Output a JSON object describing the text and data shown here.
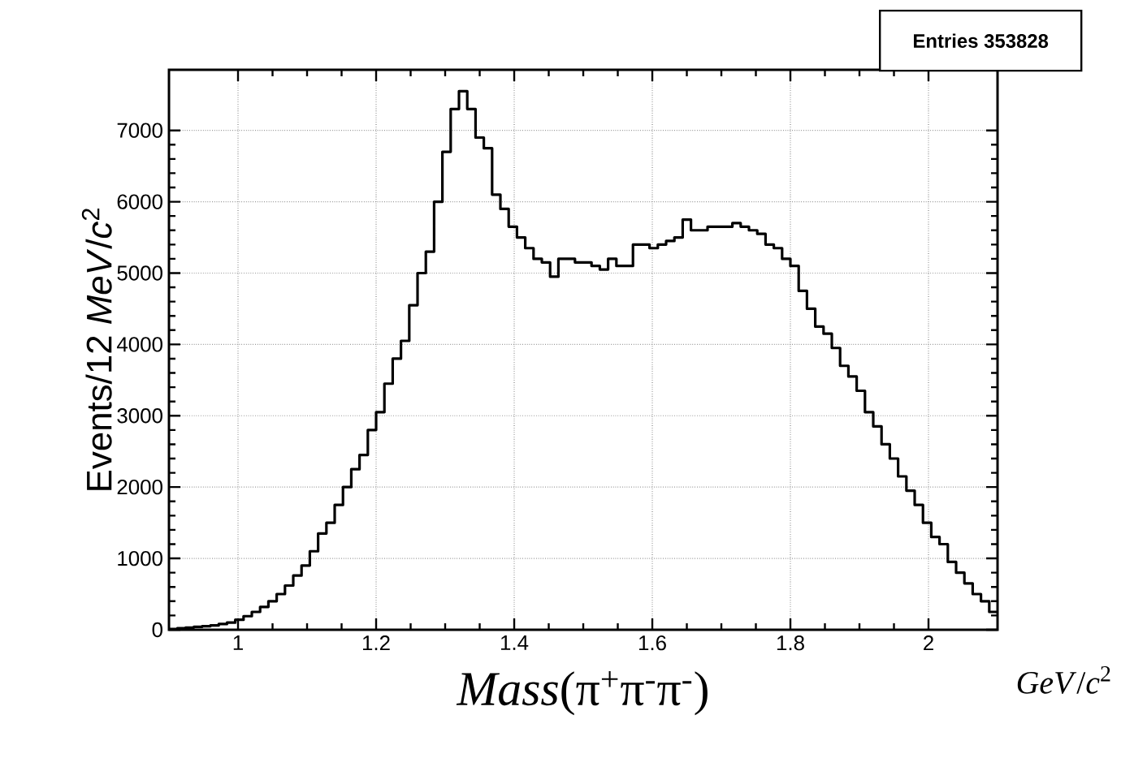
{
  "chart_data": {
    "type": "histogram",
    "xlabel": "*Mass*(π$^{+}$π$^{-}$π$^{-}$)",
    "ylabel": "Events/12 *MeV*/*c*$^{2}$",
    "annotations": [
      "Entries   353828",
      "*GeV*/*c*$^{2}$"
    ],
    "bins": [
      0.9,
      0.912,
      0.924,
      0.936,
      0.948,
      0.96,
      0.972,
      0.984,
      0.996,
      1.008,
      1.02,
      1.032,
      1.044,
      1.056,
      1.068,
      1.08,
      1.092,
      1.104,
      1.116,
      1.128,
      1.14,
      1.152,
      1.164,
      1.176,
      1.188,
      1.2,
      1.212,
      1.224,
      1.236,
      1.248,
      1.26,
      1.272,
      1.284,
      1.296,
      1.308,
      1.32,
      1.332,
      1.344,
      1.356,
      1.368,
      1.38,
      1.392,
      1.404,
      1.416,
      1.428,
      1.44,
      1.452,
      1.464,
      1.476,
      1.488,
      1.5,
      1.512,
      1.524,
      1.536,
      1.548,
      1.56,
      1.572,
      1.584,
      1.596,
      1.608,
      1.62,
      1.632,
      1.644,
      1.656,
      1.668,
      1.68,
      1.692,
      1.704,
      1.716,
      1.728,
      1.74,
      1.752,
      1.764,
      1.776,
      1.788,
      1.8,
      1.812,
      1.824,
      1.836,
      1.848,
      1.86,
      1.872,
      1.884,
      1.896,
      1.908,
      1.92,
      1.932,
      1.944,
      1.956,
      1.968,
      1.98,
      1.992,
      2.004,
      2.016,
      2.028,
      2.04,
      2.052,
      2.064,
      2.076,
      2.088,
      2.1
    ],
    "values": [
      10,
      20,
      30,
      40,
      50,
      60,
      80,
      100,
      140,
      190,
      250,
      320,
      400,
      500,
      620,
      760,
      900,
      1100,
      1350,
      1500,
      1750,
      2000,
      2250,
      2450,
      2800,
      3050,
      3450,
      3800,
      4050,
      4550,
      5000,
      5300,
      6000,
      6700,
      7300,
      7550,
      7300,
      6900,
      6750,
      6100,
      5900,
      5650,
      5500,
      5350,
      5200,
      5150,
      4950,
      5200,
      5200,
      5150,
      5150,
      5100,
      5050,
      5200,
      5100,
      5100,
      5400,
      5400,
      5350,
      5400,
      5450,
      5500,
      5750,
      5600,
      5600,
      5650,
      5650,
      5650,
      5700,
      5650,
      5600,
      5550,
      5400,
      5350,
      5200,
      5100,
      4750,
      4500,
      4250,
      4150,
      3950,
      3700,
      3550,
      3350,
      3050,
      2850,
      2600,
      2400,
      2150,
      1950,
      1750,
      1500,
      1300,
      1200,
      950,
      800,
      650,
      500,
      400,
      250
    ],
    "color": "#000000",
    "xlim": [
      0.9,
      2.1
    ],
    "ylim": [
      0,
      7850
    ],
    "xticks": [
      1,
      1.2,
      1.4,
      1.6,
      1.8,
      2
    ],
    "yticks": [
      0,
      1000,
      2000,
      3000,
      4000,
      5000,
      6000,
      7000
    ],
    "grid": true
  }
}
